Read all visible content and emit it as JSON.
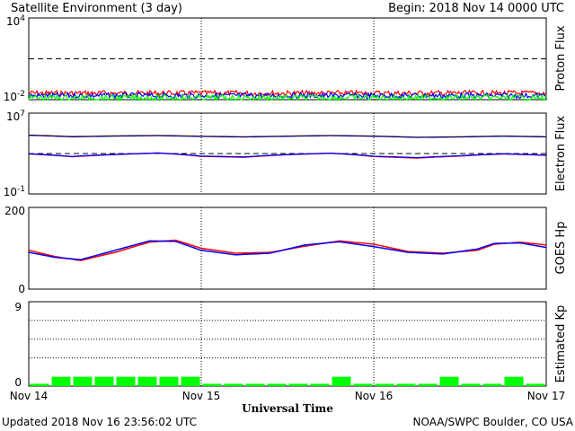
{
  "header": {
    "title": "Satellite Environment (3 day)",
    "begin": "Begin:  2018 Nov 14 0000 UTC"
  },
  "footer": {
    "updated": "Updated 2018 Nov 16 23:56:02 UTC",
    "credit": "NOAA/SWPC Boulder, CO USA"
  },
  "colors": {
    "red": "#ff0000",
    "blue": "#0000ff",
    "green": "#00ff00",
    "orange": "#ffa500",
    "navy": "#000080"
  },
  "chart_data": [
    {
      "type": "line",
      "ylabel": "Proton Flux",
      "yscale": "log",
      "ylim": [
        0.01,
        10000
      ],
      "ytick_labels": [
        "10^4",
        "10^-2"
      ],
      "threshold": 10,
      "grid": false,
      "series": [
        {
          "color": "red",
          "level": 0.03
        },
        {
          "color": "blue",
          "level": 0.02
        },
        {
          "color": "green",
          "level": 0.014
        }
      ]
    },
    {
      "type": "line",
      "ylabel": "Electron Flux",
      "yscale": "log",
      "ylim": [
        0.1,
        10000000
      ],
      "ytick_labels": [
        "10^7",
        "10^-1"
      ],
      "threshold": 1000,
      "grid": false,
      "x_days": [
        0,
        0.25,
        0.5,
        0.75,
        1.0,
        1.25,
        1.5,
        1.75,
        2.0,
        2.25,
        2.5,
        2.75,
        3.0
      ],
      "series": [
        {
          "color": "orange",
          "values": [
            70000,
            50000,
            58000,
            63000,
            54000,
            47000,
            55000,
            63000,
            55000,
            42000,
            47000,
            56000,
            48000
          ]
        },
        {
          "color": "navy",
          "values": [
            65000,
            46000,
            54000,
            60000,
            50000,
            44000,
            52000,
            60000,
            52000,
            40000,
            44000,
            53000,
            45000
          ]
        },
        {
          "color": "red",
          "values": [
            900,
            480,
            780,
            1100,
            520,
            420,
            760,
            1050,
            500,
            350,
            560,
            900,
            660
          ]
        },
        {
          "color": "blue",
          "values": [
            950,
            510,
            820,
            1150,
            560,
            460,
            800,
            1100,
            540,
            390,
            600,
            950,
            700
          ]
        }
      ]
    },
    {
      "type": "line",
      "ylabel": "GOES Hp",
      "ylim": [
        0,
        200
      ],
      "ytick_labels": [
        "200",
        "0"
      ],
      "grid": false,
      "x_days": [
        0,
        0.15,
        0.3,
        0.5,
        0.7,
        0.85,
        1.0,
        1.2,
        1.4,
        1.6,
        1.8,
        2.0,
        2.2,
        2.4,
        2.6,
        2.7,
        2.85,
        3.0
      ],
      "series": [
        {
          "color": "red",
          "values": [
            95,
            80,
            70,
            90,
            115,
            120,
            100,
            88,
            90,
            105,
            118,
            110,
            92,
            88,
            95,
            110,
            115,
            108
          ]
        },
        {
          "color": "blue",
          "values": [
            90,
            78,
            72,
            95,
            118,
            117,
            95,
            84,
            88,
            108,
            116,
            104,
            90,
            86,
            98,
            112,
            113,
            102
          ]
        }
      ]
    },
    {
      "type": "bar",
      "ylabel": "Estimated Kp",
      "ylim": [
        0,
        9
      ],
      "ytick_labels": [
        "9",
        "0"
      ],
      "grid_y": [
        3,
        5,
        7
      ],
      "categories_note": "3-hour intervals, Nov 14 00 UTC to Nov 17 00 UTC",
      "values": [
        0,
        1,
        1,
        1,
        1,
        1,
        1,
        1,
        0,
        0,
        0,
        0,
        0,
        0,
        1,
        0,
        0,
        0,
        0,
        1,
        0,
        0,
        1,
        0
      ],
      "bar_color": "green"
    }
  ],
  "x_axis": {
    "label": "Universal Time",
    "ticks": [
      "Nov 14",
      "Nov 15",
      "Nov 16",
      "Nov 17"
    ]
  }
}
